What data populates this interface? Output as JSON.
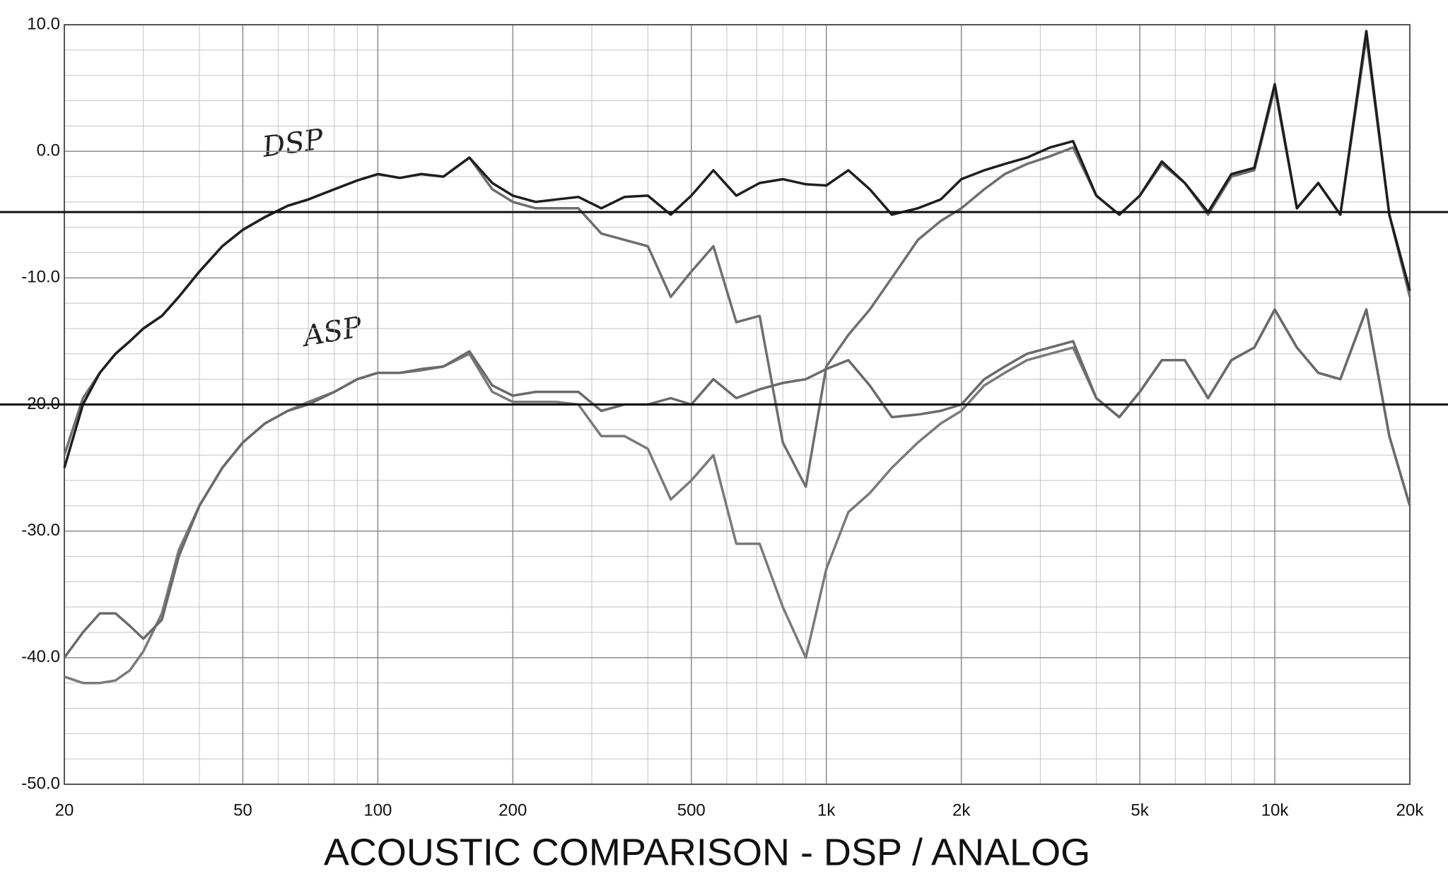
{
  "chart_data": {
    "type": "line",
    "title": "ACOUSTIC COMPARISON - DSP / ANALOG",
    "annotations": [
      "DSP",
      "ASP"
    ],
    "log_x": true,
    "grid": true,
    "xlim": [
      20,
      20000
    ],
    "xticks": [
      20,
      50,
      100,
      200,
      500,
      {
        "value": 1000,
        "label": "1k"
      },
      {
        "value": 2000,
        "label": "2k"
      },
      {
        "value": 5000,
        "label": "5k"
      },
      {
        "value": 10000,
        "label": "10k"
      },
      {
        "value": 20000,
        "label": "20k"
      }
    ],
    "ylim": [
      -50,
      10
    ],
    "yticks": [
      {
        "value": -50,
        "label": "-50.0"
      },
      {
        "value": -40,
        "label": "-40.0"
      },
      {
        "value": -30,
        "label": "-30.0"
      },
      {
        "value": -20,
        "label": "-20.0"
      },
      {
        "value": -10,
        "label": "-10.0"
      },
      {
        "value": 0,
        "label": "0.0"
      },
      {
        "value": 10,
        "label": "10.0"
      }
    ],
    "reference_lines": [
      -4.8,
      -20
    ],
    "x": [
      20,
      22,
      24,
      26,
      28,
      30,
      33,
      36,
      40,
      45,
      50,
      56,
      63,
      70,
      80,
      90,
      100,
      112,
      125,
      140,
      160,
      180,
      200,
      225,
      250,
      280,
      315,
      355,
      400,
      450,
      500,
      560,
      630,
      710,
      800,
      900,
      1000,
      1120,
      1250,
      1400,
      1600,
      1800,
      2000,
      2250,
      2500,
      2800,
      3150,
      3550,
      4000,
      4500,
      5000,
      5600,
      6300,
      7100,
      8000,
      9000,
      10000,
      11200,
      12500,
      14000,
      16000,
      18000,
      20000
    ],
    "series": [
      {
        "color": "#1e1e1e",
        "values": [
          -25,
          -20,
          -17.5,
          -16,
          -15,
          -14,
          -13,
          -11.5,
          -9.5,
          -7.5,
          -6.2,
          -5.2,
          -4.3,
          -3.8,
          -3,
          -2.3,
          -1.8,
          -2.1,
          -1.8,
          -2,
          -0.5,
          -2.5,
          -3.5,
          -4,
          -3.8,
          -3.6,
          -4.5,
          -3.6,
          -3.5,
          -5,
          -3.5,
          -1.5,
          -3.5,
          -2.5,
          -2.2,
          -2.6,
          -2.7,
          -1.5,
          -3,
          -5,
          -4.5,
          -3.8,
          -2.2,
          -1.5,
          -1,
          -0.5,
          0.3,
          0.8,
          -3.5,
          -5,
          -3.5,
          -0.8,
          -2.5,
          -4.8,
          -1.8,
          -1.3,
          5.3,
          -4.5,
          -2.5,
          -5,
          9.5,
          -5,
          -11
        ]
      },
      {
        "color": "#6e6e6e",
        "values": [
          -24,
          -19.5,
          -17.5,
          -16,
          -15,
          -14,
          -13,
          -11.5,
          -9.5,
          -7.5,
          -6.2,
          -5.2,
          -4.3,
          -3.8,
          -3,
          -2.3,
          -1.8,
          -2.1,
          -1.8,
          -2,
          -0.5,
          -3,
          -4,
          -4.5,
          -4.5,
          -4.5,
          -6.5,
          -7,
          -7.5,
          -11.5,
          -9.5,
          -7.5,
          -13.5,
          -13,
          -23,
          -26.5,
          -17,
          -14.5,
          -12.5,
          -10,
          -7,
          -5.5,
          -4.5,
          -3,
          -1.8,
          -1,
          -0.4,
          0.3,
          -3.5,
          -5,
          -3.5,
          -1,
          -2.5,
          -5,
          -2,
          -1.5,
          5,
          -4.5,
          -2.5,
          -5,
          9,
          -5,
          -11.5
        ]
      },
      {
        "color": "#6a6a6a",
        "values": [
          -40,
          -38,
          -36.5,
          -36.5,
          -37.5,
          -38.5,
          -37,
          -32,
          -28,
          -25,
          -23,
          -21.5,
          -20.5,
          -20,
          -19,
          -18,
          -17.5,
          -17.5,
          -17.2,
          -17,
          -15.8,
          -18.5,
          -19.3,
          -19,
          -19,
          -19,
          -20.5,
          -20,
          -20,
          -19.5,
          -20,
          -18,
          -19.5,
          -18.8,
          -18.3,
          -18,
          -17.2,
          -16.5,
          -18.5,
          -21,
          -20.8,
          -20.5,
          -20,
          -18,
          -17,
          -16,
          -15.5,
          -15,
          -19.5,
          -21,
          -19,
          -16.5,
          -16.5,
          -19.5,
          -16.5,
          -15.5,
          -12.5,
          -15.5,
          -17.5,
          -18,
          -12.5,
          -22.5,
          -28
        ]
      },
      {
        "color": "#7a7a7a",
        "values": [
          -41.5,
          -42,
          -42,
          -41.8,
          -41,
          -39.5,
          -36.5,
          -31.5,
          -28,
          -25,
          -23,
          -21.5,
          -20.5,
          -19.8,
          -19,
          -18,
          -17.5,
          -17.5,
          -17.3,
          -17,
          -16,
          -19,
          -19.8,
          -19.8,
          -19.8,
          -20,
          -22.5,
          -22.5,
          -23.5,
          -27.5,
          -26,
          -24,
          -31,
          -31,
          -36,
          -40,
          -33,
          -28.5,
          -27,
          -25,
          -23,
          -21.5,
          -20.5,
          -18.5,
          -17.5,
          -16.5,
          -16,
          -15.5,
          -19.5,
          -21,
          -19,
          -16.5,
          -16.5,
          -19.5,
          -16.5,
          -15.5,
          -12.5,
          -15.5,
          -17.5,
          -18,
          -12.5,
          -22.5,
          -28
        ]
      }
    ]
  }
}
